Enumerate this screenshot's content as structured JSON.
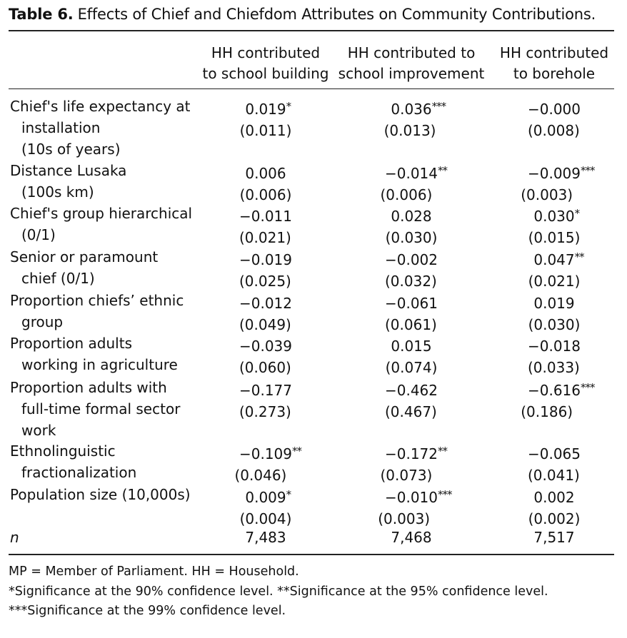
{
  "caption": {
    "label": "Table 6.",
    "text": "Effects of Chief and Chiefdom Attributes on Community Contributions."
  },
  "columns": [
    {
      "line1": "HH contributed",
      "line2": "to school building"
    },
    {
      "line1": "HH contributed to",
      "line2": "school improvement"
    },
    {
      "line1": "HH contributed",
      "line2": "to borehole"
    }
  ],
  "rows": [
    {
      "label": [
        "Chief's life expectancy at",
        "installation",
        "(10s of years)"
      ],
      "cells": [
        {
          "coef": "0.019",
          "stars": "*",
          "se": "(0.011)"
        },
        {
          "coef": "0.036",
          "stars": "***",
          "se": "(0.013)"
        },
        {
          "coef": "−0.000",
          "stars": "",
          "se": "(0.008)"
        }
      ]
    },
    {
      "label": [
        "Distance Lusaka",
        "(100s km)"
      ],
      "cells": [
        {
          "coef": "0.006",
          "stars": "",
          "se": "(0.006)"
        },
        {
          "coef": "−0.014",
          "stars": "**",
          "se": "(0.006)"
        },
        {
          "coef": "−0.009",
          "stars": "***",
          "se": "(0.003)"
        }
      ]
    },
    {
      "label": [
        "Chief's group hierarchical",
        "(0/1)"
      ],
      "cells": [
        {
          "coef": "−0.011",
          "stars": "",
          "se": "(0.021)"
        },
        {
          "coef": "0.028",
          "stars": "",
          "se": "(0.030)"
        },
        {
          "coef": "0.030",
          "stars": "*",
          "se": "(0.015)"
        }
      ]
    },
    {
      "label": [
        "Senior or paramount",
        "chief (0/1)"
      ],
      "cells": [
        {
          "coef": "−0.019",
          "stars": "",
          "se": "(0.025)"
        },
        {
          "coef": "−0.002",
          "stars": "",
          "se": "(0.032)"
        },
        {
          "coef": "0.047",
          "stars": "**",
          "se": "(0.021)"
        }
      ]
    },
    {
      "label": [
        "Proportion chiefs’ ethnic",
        "group"
      ],
      "cells": [
        {
          "coef": "−0.012",
          "stars": "",
          "se": "(0.049)"
        },
        {
          "coef": "−0.061",
          "stars": "",
          "se": "(0.061)"
        },
        {
          "coef": "0.019",
          "stars": "",
          "se": "(0.030)"
        }
      ]
    },
    {
      "label": [
        "Proportion adults",
        "working in agriculture"
      ],
      "cells": [
        {
          "coef": "−0.039",
          "stars": "",
          "se": "(0.060)"
        },
        {
          "coef": "0.015",
          "stars": "",
          "se": "(0.074)"
        },
        {
          "coef": "−0.018",
          "stars": "",
          "se": "(0.033)"
        }
      ]
    },
    {
      "label": [
        "Proportion adults with",
        "full-time formal sector",
        "work"
      ],
      "cells": [
        {
          "coef": "−0.177",
          "stars": "",
          "se": "(0.273)"
        },
        {
          "coef": "−0.462",
          "stars": "",
          "se": "(0.467)"
        },
        {
          "coef": "−0.616",
          "stars": "***",
          "se": "(0.186)"
        }
      ]
    },
    {
      "label": [
        "Ethnolinguistic",
        "fractionalization"
      ],
      "cells": [
        {
          "coef": "−0.109",
          "stars": "**",
          "se": "(0.046)"
        },
        {
          "coef": "−0.172",
          "stars": "**",
          "se": "(0.073)"
        },
        {
          "coef": "−0.065",
          "stars": "",
          "se": "(0.041)"
        }
      ]
    },
    {
      "label": [
        "Population size (10,000s)"
      ],
      "cells": [
        {
          "coef": "0.009",
          "stars": "*",
          "se": "(0.004)"
        },
        {
          "coef": "−0.010",
          "stars": "***",
          "se": "(0.003)"
        },
        {
          "coef": "0.002",
          "stars": "",
          "se": "(0.002)"
        }
      ]
    }
  ],
  "n_row": {
    "label": "n",
    "values": [
      "7,483",
      "7,468",
      "7,517"
    ]
  },
  "notes": [
    "MP = Member of Parliament. HH = Household.",
    "*Significance at the 90% confidence level. **Significance at the 95% confidence level.",
    "***Significance at the 99% confidence level."
  ]
}
